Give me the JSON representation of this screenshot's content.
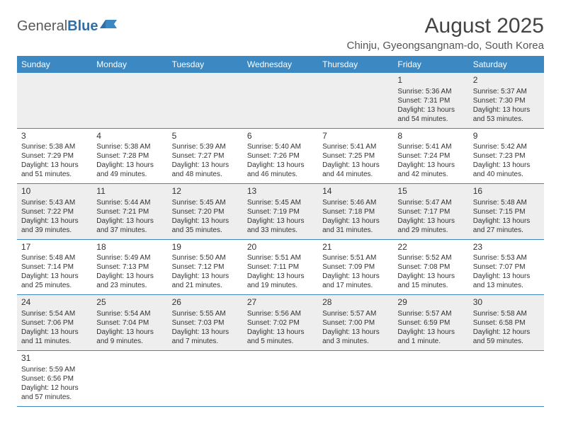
{
  "logo": {
    "part1": "General",
    "part2": "Blue"
  },
  "title": "August 2025",
  "location": "Chinju, Gyeongsangnam-do, South Korea",
  "colors": {
    "header_bg": "#3b88c3",
    "header_fg": "#ffffff",
    "row_alt_bg": "#eeeeee",
    "row_bg": "#ffffff",
    "rule": "#3b88c3",
    "title_color": "#444444",
    "text_color": "#333333"
  },
  "day_headers": [
    "Sunday",
    "Monday",
    "Tuesday",
    "Wednesday",
    "Thursday",
    "Friday",
    "Saturday"
  ],
  "labels": {
    "sunrise": "Sunrise:",
    "sunset": "Sunset:",
    "daylight": "Daylight:"
  },
  "weeks": [
    [
      null,
      null,
      null,
      null,
      null,
      {
        "n": "1",
        "sr": "5:36 AM",
        "ss": "7:31 PM",
        "dl": "13 hours and 54 minutes."
      },
      {
        "n": "2",
        "sr": "5:37 AM",
        "ss": "7:30 PM",
        "dl": "13 hours and 53 minutes."
      }
    ],
    [
      {
        "n": "3",
        "sr": "5:38 AM",
        "ss": "7:29 PM",
        "dl": "13 hours and 51 minutes."
      },
      {
        "n": "4",
        "sr": "5:38 AM",
        "ss": "7:28 PM",
        "dl": "13 hours and 49 minutes."
      },
      {
        "n": "5",
        "sr": "5:39 AM",
        "ss": "7:27 PM",
        "dl": "13 hours and 48 minutes."
      },
      {
        "n": "6",
        "sr": "5:40 AM",
        "ss": "7:26 PM",
        "dl": "13 hours and 46 minutes."
      },
      {
        "n": "7",
        "sr": "5:41 AM",
        "ss": "7:25 PM",
        "dl": "13 hours and 44 minutes."
      },
      {
        "n": "8",
        "sr": "5:41 AM",
        "ss": "7:24 PM",
        "dl": "13 hours and 42 minutes."
      },
      {
        "n": "9",
        "sr": "5:42 AM",
        "ss": "7:23 PM",
        "dl": "13 hours and 40 minutes."
      }
    ],
    [
      {
        "n": "10",
        "sr": "5:43 AM",
        "ss": "7:22 PM",
        "dl": "13 hours and 39 minutes."
      },
      {
        "n": "11",
        "sr": "5:44 AM",
        "ss": "7:21 PM",
        "dl": "13 hours and 37 minutes."
      },
      {
        "n": "12",
        "sr": "5:45 AM",
        "ss": "7:20 PM",
        "dl": "13 hours and 35 minutes."
      },
      {
        "n": "13",
        "sr": "5:45 AM",
        "ss": "7:19 PM",
        "dl": "13 hours and 33 minutes."
      },
      {
        "n": "14",
        "sr": "5:46 AM",
        "ss": "7:18 PM",
        "dl": "13 hours and 31 minutes."
      },
      {
        "n": "15",
        "sr": "5:47 AM",
        "ss": "7:17 PM",
        "dl": "13 hours and 29 minutes."
      },
      {
        "n": "16",
        "sr": "5:48 AM",
        "ss": "7:15 PM",
        "dl": "13 hours and 27 minutes."
      }
    ],
    [
      {
        "n": "17",
        "sr": "5:48 AM",
        "ss": "7:14 PM",
        "dl": "13 hours and 25 minutes."
      },
      {
        "n": "18",
        "sr": "5:49 AM",
        "ss": "7:13 PM",
        "dl": "13 hours and 23 minutes."
      },
      {
        "n": "19",
        "sr": "5:50 AM",
        "ss": "7:12 PM",
        "dl": "13 hours and 21 minutes."
      },
      {
        "n": "20",
        "sr": "5:51 AM",
        "ss": "7:11 PM",
        "dl": "13 hours and 19 minutes."
      },
      {
        "n": "21",
        "sr": "5:51 AM",
        "ss": "7:09 PM",
        "dl": "13 hours and 17 minutes."
      },
      {
        "n": "22",
        "sr": "5:52 AM",
        "ss": "7:08 PM",
        "dl": "13 hours and 15 minutes."
      },
      {
        "n": "23",
        "sr": "5:53 AM",
        "ss": "7:07 PM",
        "dl": "13 hours and 13 minutes."
      }
    ],
    [
      {
        "n": "24",
        "sr": "5:54 AM",
        "ss": "7:06 PM",
        "dl": "13 hours and 11 minutes."
      },
      {
        "n": "25",
        "sr": "5:54 AM",
        "ss": "7:04 PM",
        "dl": "13 hours and 9 minutes."
      },
      {
        "n": "26",
        "sr": "5:55 AM",
        "ss": "7:03 PM",
        "dl": "13 hours and 7 minutes."
      },
      {
        "n": "27",
        "sr": "5:56 AM",
        "ss": "7:02 PM",
        "dl": "13 hours and 5 minutes."
      },
      {
        "n": "28",
        "sr": "5:57 AM",
        "ss": "7:00 PM",
        "dl": "13 hours and 3 minutes."
      },
      {
        "n": "29",
        "sr": "5:57 AM",
        "ss": "6:59 PM",
        "dl": "13 hours and 1 minute."
      },
      {
        "n": "30",
        "sr": "5:58 AM",
        "ss": "6:58 PM",
        "dl": "12 hours and 59 minutes."
      }
    ],
    [
      {
        "n": "31",
        "sr": "5:59 AM",
        "ss": "6:56 PM",
        "dl": "12 hours and 57 minutes."
      },
      null,
      null,
      null,
      null,
      null,
      null
    ]
  ]
}
